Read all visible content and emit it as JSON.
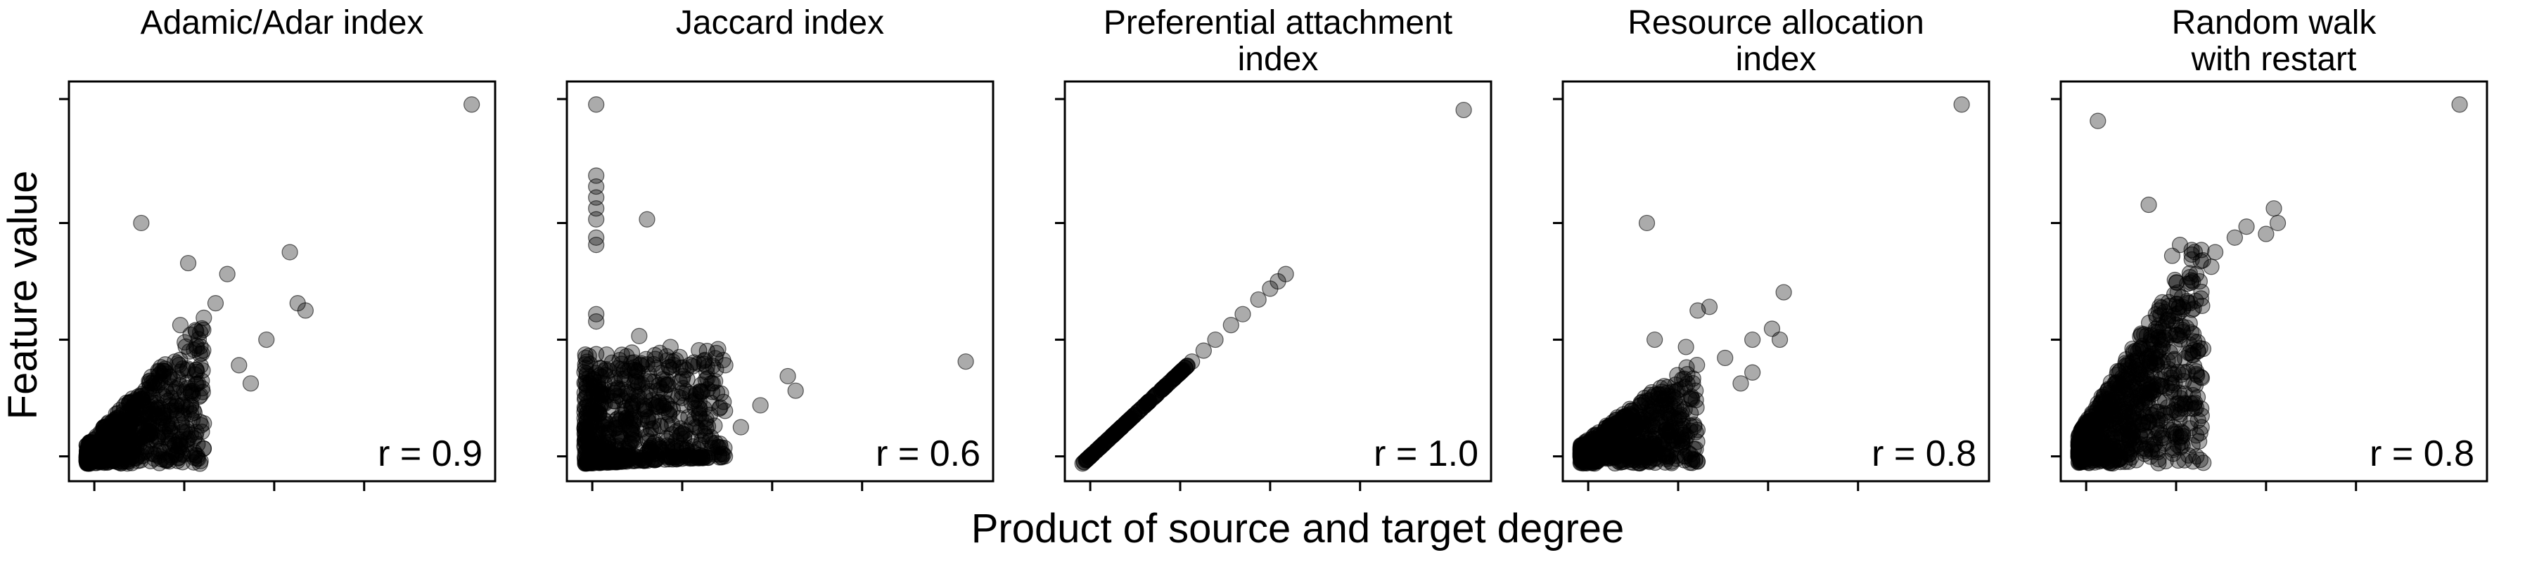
{
  "figure": {
    "xlabel": "Product of source and target degree",
    "ylabel": "Feature value",
    "xlim": [
      0,
      1
    ],
    "ylim": [
      0,
      1
    ]
  },
  "chart_data": [
    {
      "type": "scatter",
      "title_lines": [
        "Adamic/Adar index"
      ],
      "annotation": "r = 0.9",
      "xlim": [
        0,
        1
      ],
      "ylim": [
        0,
        1
      ],
      "cloud": {
        "kind": "cloud",
        "slope": 0.85,
        "spread": 0.28,
        "count": 650,
        "seed": 11
      },
      "points": [
        {
          "x": 0.985,
          "y": 0.985
        },
        {
          "x": 0.14,
          "y": 0.66
        },
        {
          "x": 0.26,
          "y": 0.55
        },
        {
          "x": 0.36,
          "y": 0.52
        },
        {
          "x": 0.52,
          "y": 0.58
        },
        {
          "x": 0.54,
          "y": 0.44
        },
        {
          "x": 0.56,
          "y": 0.42
        },
        {
          "x": 0.46,
          "y": 0.34
        },
        {
          "x": 0.39,
          "y": 0.27
        },
        {
          "x": 0.42,
          "y": 0.22
        },
        {
          "x": 0.3,
          "y": 0.4
        },
        {
          "x": 0.33,
          "y": 0.44
        },
        {
          "x": 0.24,
          "y": 0.38
        },
        {
          "x": 0.29,
          "y": 0.3
        }
      ]
    },
    {
      "type": "scatter",
      "title_lines": [
        "Jaccard index"
      ],
      "annotation": "r = 0.6",
      "xlim": [
        0,
        1
      ],
      "ylim": [
        0,
        1
      ],
      "cloud": {
        "kind": "band",
        "slope": 0.35,
        "spread": 0.22,
        "count": 650,
        "seed": 23
      },
      "points": [
        {
          "x": 0.03,
          "y": 0.985
        },
        {
          "x": 0.03,
          "y": 0.79
        },
        {
          "x": 0.03,
          "y": 0.76
        },
        {
          "x": 0.03,
          "y": 0.73
        },
        {
          "x": 0.03,
          "y": 0.7
        },
        {
          "x": 0.03,
          "y": 0.67
        },
        {
          "x": 0.03,
          "y": 0.62
        },
        {
          "x": 0.03,
          "y": 0.6
        },
        {
          "x": 0.16,
          "y": 0.67
        },
        {
          "x": 0.03,
          "y": 0.41
        },
        {
          "x": 0.03,
          "y": 0.39
        },
        {
          "x": 0.975,
          "y": 0.28
        },
        {
          "x": 0.52,
          "y": 0.24
        },
        {
          "x": 0.54,
          "y": 0.2
        },
        {
          "x": 0.45,
          "y": 0.16
        },
        {
          "x": 0.4,
          "y": 0.1
        },
        {
          "x": 0.31,
          "y": 0.23
        },
        {
          "x": 0.36,
          "y": 0.27
        },
        {
          "x": 0.22,
          "y": 0.32
        },
        {
          "x": 0.14,
          "y": 0.35
        }
      ]
    },
    {
      "type": "scatter",
      "title_lines": [
        "Preferential attachment",
        "index"
      ],
      "annotation": "r = 1.0",
      "xlim": [
        0,
        1
      ],
      "ylim": [
        0,
        1
      ],
      "cloud": {
        "kind": "line",
        "slope": 0.495,
        "spread": 0.0,
        "count": 150,
        "seed": 37
      },
      "points": [
        {
          "x": 0.975,
          "y": 0.97
        },
        {
          "x": 0.52,
          "y": 0.52
        },
        {
          "x": 0.5,
          "y": 0.5
        },
        {
          "x": 0.48,
          "y": 0.48
        },
        {
          "x": 0.45,
          "y": 0.45
        },
        {
          "x": 0.41,
          "y": 0.41
        },
        {
          "x": 0.38,
          "y": 0.38
        },
        {
          "x": 0.34,
          "y": 0.34
        },
        {
          "x": 0.31,
          "y": 0.31
        },
        {
          "x": 0.28,
          "y": 0.28
        }
      ]
    },
    {
      "type": "scatter",
      "title_lines": [
        "Resource allocation",
        "index"
      ],
      "annotation": "r = 0.8",
      "xlim": [
        0,
        1
      ],
      "ylim": [
        0,
        1
      ],
      "cloud": {
        "kind": "cloud",
        "slope": 0.6,
        "spread": 0.22,
        "count": 650,
        "seed": 53
      },
      "points": [
        {
          "x": 0.975,
          "y": 0.985
        },
        {
          "x": 0.17,
          "y": 0.66
        },
        {
          "x": 0.52,
          "y": 0.47
        },
        {
          "x": 0.3,
          "y": 0.42
        },
        {
          "x": 0.33,
          "y": 0.43
        },
        {
          "x": 0.49,
          "y": 0.37
        },
        {
          "x": 0.51,
          "y": 0.34
        },
        {
          "x": 0.44,
          "y": 0.34
        },
        {
          "x": 0.37,
          "y": 0.29
        },
        {
          "x": 0.44,
          "y": 0.25
        },
        {
          "x": 0.41,
          "y": 0.22
        },
        {
          "x": 0.19,
          "y": 0.34
        },
        {
          "x": 0.27,
          "y": 0.32
        }
      ]
    },
    {
      "type": "scatter",
      "title_lines": [
        "Random walk",
        "with restart"
      ],
      "annotation": "r = 0.8",
      "xlim": [
        0,
        1
      ],
      "ylim": [
        0,
        1
      ],
      "cloud": {
        "kind": "steep",
        "slope": 0.7,
        "spread": 0.3,
        "count": 750,
        "seed": 71
      },
      "points": [
        {
          "x": 0.975,
          "y": 0.985
        },
        {
          "x": 0.05,
          "y": 0.94
        },
        {
          "x": 0.18,
          "y": 0.71
        },
        {
          "x": 0.5,
          "y": 0.7
        },
        {
          "x": 0.51,
          "y": 0.66
        },
        {
          "x": 0.43,
          "y": 0.65
        },
        {
          "x": 0.4,
          "y": 0.62
        },
        {
          "x": 0.48,
          "y": 0.63
        },
        {
          "x": 0.35,
          "y": 0.58
        },
        {
          "x": 0.34,
          "y": 0.54
        },
        {
          "x": 0.29,
          "y": 0.56
        },
        {
          "x": 0.26,
          "y": 0.6
        },
        {
          "x": 0.24,
          "y": 0.57
        },
        {
          "x": 0.31,
          "y": 0.5
        }
      ]
    }
  ]
}
